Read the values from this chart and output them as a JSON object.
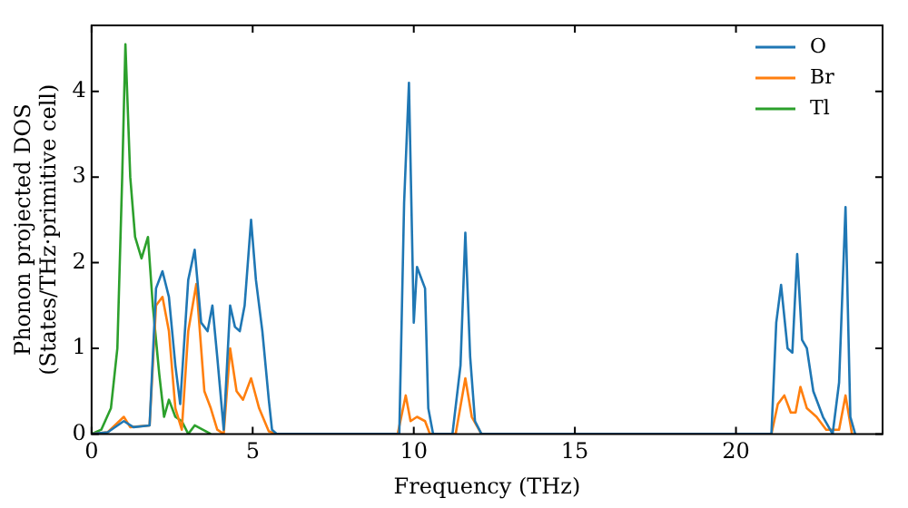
{
  "chart_data": {
    "type": "line",
    "xlabel": "Frequency (THz)",
    "ylabel": "Phonon projected DOS\n(States/THz·primitive cell)",
    "xlim": [
      0,
      24.55
    ],
    "ylim": [
      0,
      4.77
    ],
    "xticks": [
      0,
      5,
      10,
      15,
      20
    ],
    "yticks": [
      0,
      1,
      2,
      3,
      4
    ],
    "grid": false,
    "legend": "top right",
    "marker": "none",
    "line_style": "solid",
    "series": [
      {
        "name": "O",
        "color": "#1f77b4",
        "x": [
          0,
          0.5,
          1.0,
          1.3,
          1.8,
          2.0,
          2.2,
          2.4,
          2.6,
          2.75,
          3.0,
          3.2,
          3.4,
          3.6,
          3.75,
          3.9,
          4.1,
          4.3,
          4.45,
          4.6,
          4.75,
          4.95,
          5.1,
          5.3,
          5.5,
          5.6,
          5.75,
          9.55,
          9.7,
          9.85,
          10.0,
          10.1,
          10.2,
          10.35,
          10.45,
          10.6,
          11.2,
          11.45,
          11.6,
          11.75,
          11.9,
          12.1,
          21.1,
          21.25,
          21.4,
          21.6,
          21.75,
          21.9,
          22.05,
          22.2,
          22.4,
          22.7,
          23.0,
          23.2,
          23.4,
          23.55,
          23.7
        ],
        "values": [
          0,
          0.02,
          0.15,
          0.08,
          0.1,
          1.7,
          1.9,
          1.6,
          0.8,
          0.35,
          1.8,
          2.15,
          1.3,
          1.2,
          1.5,
          0.9,
          0.05,
          1.5,
          1.25,
          1.2,
          1.5,
          2.5,
          1.8,
          1.2,
          0.4,
          0.05,
          0,
          0,
          2.7,
          4.1,
          1.3,
          1.95,
          1.85,
          1.7,
          0.3,
          0,
          0,
          0.8,
          2.35,
          0.9,
          0.15,
          0,
          0,
          1.3,
          1.74,
          1.0,
          0.95,
          2.1,
          1.1,
          1.0,
          0.5,
          0.2,
          0,
          0.6,
          2.65,
          0.2,
          0
        ]
      },
      {
        "name": "Br",
        "color": "#ff7f0e",
        "x": [
          0,
          0.5,
          1.0,
          1.2,
          1.8,
          2.0,
          2.2,
          2.4,
          2.6,
          2.8,
          3.0,
          3.25,
          3.5,
          3.7,
          3.9,
          4.1,
          4.3,
          4.5,
          4.7,
          4.95,
          5.2,
          5.5,
          5.75,
          9.5,
          9.75,
          9.9,
          10.1,
          10.35,
          10.5,
          11.3,
          11.6,
          11.8,
          12.1,
          21.1,
          21.3,
          21.5,
          21.7,
          21.85,
          22.0,
          22.2,
          22.5,
          22.8,
          23.2,
          23.4,
          23.6
        ],
        "values": [
          0,
          0.02,
          0.2,
          0.08,
          0.1,
          1.5,
          1.6,
          1.2,
          0.3,
          0.05,
          1.2,
          1.75,
          0.5,
          0.3,
          0.05,
          0,
          1.0,
          0.5,
          0.4,
          0.65,
          0.3,
          0.03,
          0,
          0,
          0.45,
          0.15,
          0.2,
          0.15,
          0,
          0,
          0.65,
          0.2,
          0,
          0,
          0.35,
          0.45,
          0.25,
          0.25,
          0.55,
          0.3,
          0.2,
          0.05,
          0.05,
          0.45,
          0
        ]
      },
      {
        "name": "Tl",
        "color": "#2ca02c",
        "x": [
          0,
          0.3,
          0.6,
          0.8,
          0.95,
          1.05,
          1.2,
          1.35,
          1.55,
          1.75,
          1.9,
          2.1,
          2.25,
          2.4,
          2.6,
          2.8,
          3.0,
          3.2,
          3.45,
          3.7
        ],
        "values": [
          0,
          0.05,
          0.3,
          1.0,
          3.0,
          4.55,
          3.0,
          2.3,
          2.05,
          2.3,
          1.5,
          0.7,
          0.2,
          0.4,
          0.2,
          0.15,
          0,
          0.1,
          0.05,
          0
        ]
      }
    ]
  }
}
